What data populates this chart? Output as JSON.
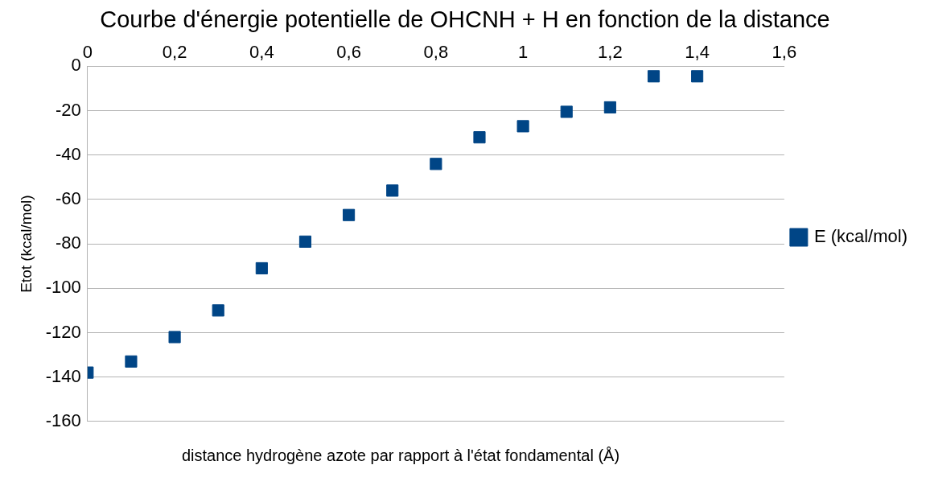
{
  "chart_data": {
    "type": "scatter",
    "title": "Courbe d'énergie potentielle de OHCNH + H en fonction de la distance",
    "xlabel": "distance hydrogène azote par rapport à l'état fondamental (Å)",
    "ylabel": "Etot (kcal/mol)",
    "x": [
      0,
      0.1,
      0.2,
      0.3,
      0.4,
      0.5,
      0.6,
      0.7,
      0.8,
      0.9,
      1.0,
      1.1,
      1.2,
      1.3,
      1.4
    ],
    "series": [
      {
        "name": "E (kcal/mol)",
        "color": "#004586",
        "values": [
          -138,
          -133,
          -122,
          -110,
          -91,
          -79,
          -67,
          -56,
          -44,
          -32,
          -27,
          -20.5,
          -18.5,
          -4.5,
          -4.5
        ]
      }
    ],
    "xlim": [
      0,
      1.6
    ],
    "xticks": [
      0,
      {
        "value": 0.2,
        "label": "0,2"
      },
      {
        "value": 0.4,
        "label": "0,4"
      },
      {
        "value": 0.6,
        "label": "0,6"
      },
      {
        "value": 0.8,
        "label": "0,8"
      },
      1,
      {
        "value": 1.2,
        "label": "1,2"
      },
      {
        "value": 1.4,
        "label": "1,4"
      },
      {
        "value": 1.6,
        "label": "1,6"
      }
    ],
    "ylim": [
      -160,
      0
    ],
    "yticks": [
      -160,
      -140,
      -120,
      -100,
      -80,
      -60,
      -40,
      -20,
      0
    ],
    "grid": "y",
    "legend": "right",
    "marker": "square"
  }
}
